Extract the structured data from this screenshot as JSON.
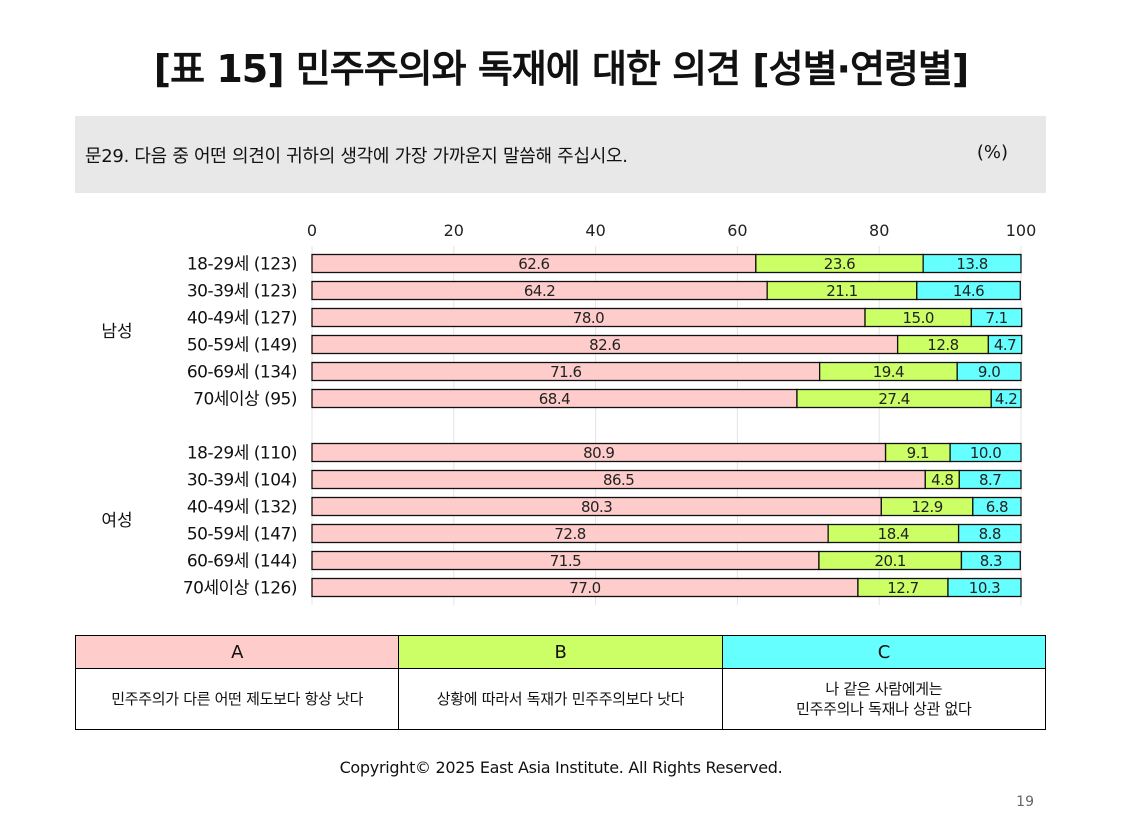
{
  "title": "[표 15] 민주주의와 독재에 대한 의견 [성별·연령별]",
  "question": "문29. 다음 중 어떤 의견이 귀하의 생각에 가장 가까운지 말씀해 주십시오.",
  "unit": "(%)",
  "chart_data": {
    "type": "bar",
    "orientation": "horizontal",
    "stacked": true,
    "xlim": [
      0,
      100
    ],
    "xticks": [
      "0",
      "20",
      "40",
      "60",
      "80",
      "100"
    ],
    "groups": [
      {
        "label": "남성",
        "categories": [
          "18-29세 (123)",
          "30-39세 (123)",
          "40-49세 (127)",
          "50-59세 (149)",
          "60-69세 (134)",
          "70세이상 (95)"
        ],
        "series": [
          {
            "name": "A",
            "values": [
              62.6,
              64.2,
              78.0,
              82.6,
              71.6,
              68.4
            ]
          },
          {
            "name": "B",
            "values": [
              23.6,
              21.1,
              15.0,
              12.8,
              19.4,
              27.4
            ]
          },
          {
            "name": "C",
            "values": [
              13.8,
              14.6,
              7.1,
              4.7,
              9.0,
              4.2
            ]
          }
        ]
      },
      {
        "label": "여성",
        "categories": [
          "18-29세 (110)",
          "30-39세 (104)",
          "40-49세 (132)",
          "50-59세 (147)",
          "60-69세 (144)",
          "70세이상 (126)"
        ],
        "series": [
          {
            "name": "A",
            "values": [
              80.9,
              86.5,
              80.3,
              72.8,
              71.5,
              77.0
            ]
          },
          {
            "name": "B",
            "values": [
              9.1,
              4.8,
              12.9,
              18.4,
              20.1,
              12.7
            ]
          },
          {
            "name": "C",
            "values": [
              10.0,
              8.7,
              6.8,
              8.8,
              8.3,
              10.3
            ]
          }
        ]
      }
    ],
    "colors": {
      "A": "#ffcccc",
      "B": "#ccff66",
      "C": "#66ffff"
    },
    "grid": true,
    "legend": "bottom table"
  },
  "legend": [
    {
      "key": "A",
      "text": "민주주의가 다른 어떤 제도보다 항상 낫다",
      "color": "#ffcccc"
    },
    {
      "key": "B",
      "text": "상황에 따라서 독재가 민주주의보다 낫다",
      "color": "#ccff66"
    },
    {
      "key": "C",
      "text": "나 같은 사람에게는\n민주주의나 독재나 상관 없다",
      "color": "#66ffff"
    }
  ],
  "footer": "Copyright© 2025 East Asia Institute. All Rights Reserved.",
  "page_number": "19"
}
